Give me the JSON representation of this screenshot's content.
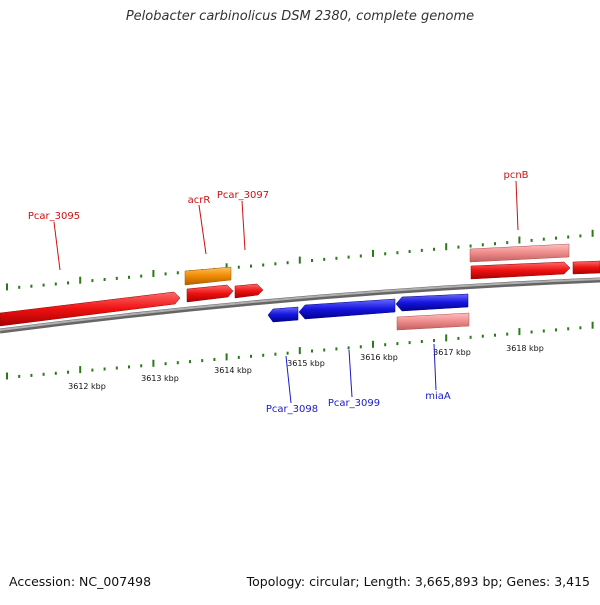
{
  "title": "Pelobacter carbinolicus DSM 2380, complete genome",
  "footer": {
    "accession": "Accession: NC_007498",
    "summary": "Topology: circular; Length: 3,665,893 bp; Genes: 3,415"
  },
  "colors": {
    "forward_gene": "#ee1111",
    "forward_rna": "#f08a8a",
    "reverse_gene": "#1515dd",
    "reverse_rna": "#e87d7d",
    "orange_gene": "#f08a00",
    "backbone": "#888888",
    "ticks": "#2a7a1a",
    "label_forward": "#cc1111",
    "label_reverse": "#1a1acc"
  },
  "scale_labels": [
    "3612 kbp",
    "3613 kbp",
    "3614 kbp",
    "3615 kbp",
    "3616 kbp",
    "3617 kbp",
    "3618 kbp"
  ],
  "gene_labels": {
    "forward": [
      "Pcar_3095",
      "acrR",
      "Pcar_3097",
      "pcnB"
    ],
    "reverse": [
      "Pcar_3098",
      "Pcar_3099",
      "miaA"
    ]
  }
}
